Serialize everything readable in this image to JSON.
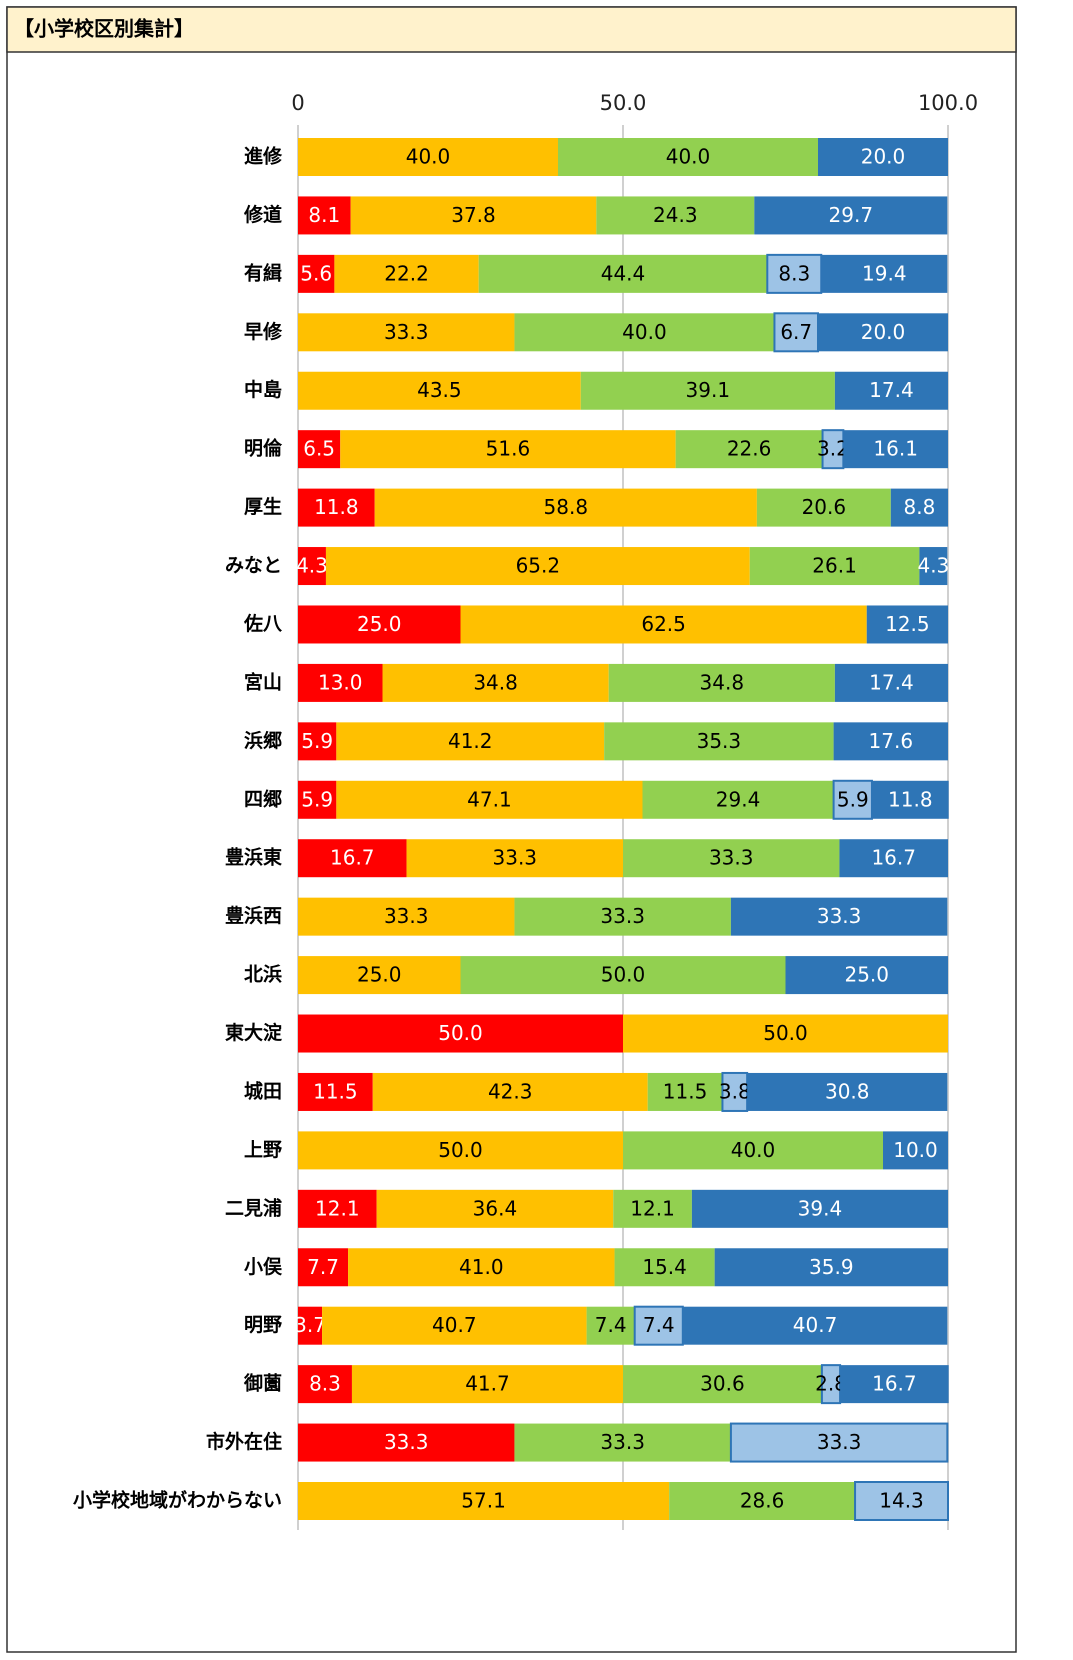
{
  "chart_data": {
    "type": "bar",
    "orientation": "horizontal",
    "stacked": true,
    "title": "【小学校区別集計】",
    "categories": [
      "進修",
      "修道",
      "有緝",
      "早修",
      "中島",
      "明倫",
      "厚生",
      "みなと",
      "佐八",
      "宮山",
      "浜郷",
      "四郷",
      "豊浜東",
      "豊浜西",
      "北浜",
      "東大淀",
      "城田",
      "上野",
      "二見浦",
      "小俣",
      "明野",
      "御薗",
      "市外在住",
      "小学校地域がわからない"
    ],
    "xlim": [
      0,
      100
    ],
    "xticks": [
      0,
      {
        "value": 50,
        "label": "50.0"
      },
      {
        "value": 100,
        "label": "100.0"
      }
    ],
    "grid": true,
    "series": [
      {
        "color": "#ff0000",
        "values": [
          null,
          8.1,
          5.6,
          null,
          null,
          6.5,
          11.8,
          4.3,
          25,
          13,
          5.9,
          5.9,
          16.7,
          null,
          null,
          50,
          11.5,
          null,
          12.1,
          7.7,
          3.7,
          8.3,
          33.3,
          null
        ],
        "value_labels": [
          null,
          "8.1",
          "5.6",
          null,
          null,
          "6.5",
          "11.8",
          "4.3",
          "25.0",
          "13.0",
          "5.9",
          "5.9",
          "16.7",
          null,
          null,
          "50.0",
          "11.5",
          null,
          "12.1",
          "7.7",
          "3.7",
          "8.3",
          "33.3",
          null
        ]
      },
      {
        "color": "#ffc000",
        "values": [
          40,
          37.8,
          22.2,
          33.3,
          43.5,
          51.6,
          58.8,
          65.2,
          62.5,
          34.8,
          41.2,
          47.1,
          33.3,
          33.3,
          25,
          50,
          42.3,
          50,
          36.4,
          41,
          40.7,
          41.7,
          null,
          57.1
        ],
        "value_labels": [
          "40.0",
          "37.8",
          "22.2",
          "33.3",
          "43.5",
          "51.6",
          "58.8",
          "65.2",
          "62.5",
          "34.8",
          "41.2",
          "47.1",
          "33.3",
          "33.3",
          "25.0",
          "50.0",
          "42.3",
          "50.0",
          "36.4",
          "41.0",
          "40.7",
          "41.7",
          null,
          "57.1"
        ]
      },
      {
        "color": "#92d050",
        "values": [
          40,
          24.3,
          44.4,
          40,
          39.1,
          22.6,
          20.6,
          26.1,
          null,
          34.8,
          35.3,
          29.4,
          33.3,
          33.3,
          50,
          null,
          11.5,
          40,
          12.1,
          15.4,
          7.4,
          30.6,
          33.3,
          28.6
        ],
        "value_labels": [
          "40.0",
          "24.3",
          "44.4",
          "40.0",
          "39.1",
          "22.6",
          "20.6",
          "26.1",
          null,
          "34.8",
          "35.3",
          "29.4",
          "33.3",
          "33.3",
          "50.0",
          null,
          "11.5",
          "40.0",
          "12.1",
          "15.4",
          "7.4",
          "30.6",
          "33.3",
          "28.6"
        ]
      },
      {
        "color": "#9dc3e6",
        "values": [
          null,
          null,
          8.3,
          6.7,
          null,
          3.2,
          null,
          null,
          null,
          null,
          null,
          5.9,
          null,
          null,
          null,
          null,
          3.8,
          null,
          null,
          null,
          7.4,
          2.8,
          33.3,
          14.3
        ],
        "value_labels": [
          null,
          null,
          "8.3",
          "6.7",
          null,
          "3.2",
          null,
          null,
          null,
          null,
          null,
          "5.9",
          null,
          null,
          null,
          null,
          "3.8",
          null,
          null,
          null,
          "7.4",
          "2.8",
          "33.3",
          "14.3"
        ]
      },
      {
        "color": "#2e75b6",
        "values": [
          20,
          29.7,
          19.4,
          20,
          17.4,
          16.1,
          8.8,
          4.3,
          12.5,
          17.4,
          17.6,
          11.8,
          16.7,
          33.3,
          25,
          null,
          30.8,
          10,
          39.4,
          35.9,
          40.7,
          16.7,
          null,
          null
        ],
        "value_labels": [
          "20.0",
          "29.7",
          "19.4",
          "20.0",
          "17.4",
          "16.1",
          "8.8",
          "4.3",
          "12.5",
          "17.4",
          "17.6",
          "11.8",
          "16.7",
          "33.3",
          "25.0",
          null,
          "30.8",
          "10.0",
          "39.4",
          "35.9",
          "40.7",
          "16.7",
          null,
          null
        ]
      }
    ]
  }
}
